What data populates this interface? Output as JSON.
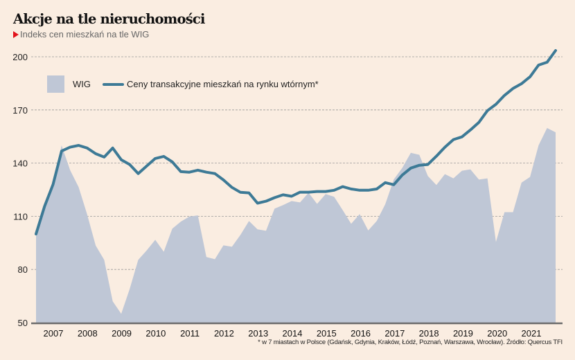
{
  "header": {
    "title": "Akcje na tle nieruchomości",
    "subtitle": "Indeks cen mieszkań na tle WIG"
  },
  "footnote": "* w 7 miastach w Polsce (Gdańsk, Gdynia, Kraków, Łódź, Poznań, Warszawa, Wrocław). Źródło: Quercus TFI",
  "colors": {
    "background": "#faede1",
    "wig_fill": "#bfc7d6",
    "price_line": "#3d7a96",
    "grid": "#9a9a9a",
    "axis": "#6b6b6b",
    "marker": "#e2121b"
  },
  "chart_data": {
    "type": "area+line",
    "title": "Akcje na tle nieruchomości",
    "subtitle": "Indeks cen mieszkań na tle WIG",
    "xlabel": "",
    "ylabel": "",
    "ylim": [
      50,
      205
    ],
    "yticks": [
      50,
      80,
      110,
      140,
      170,
      200
    ],
    "xticks": [
      "2007",
      "2008",
      "2009",
      "2010",
      "2011",
      "2012",
      "2013",
      "2014",
      "2015",
      "2016",
      "2017",
      "2018",
      "2019",
      "2020",
      "2021"
    ],
    "grid": true,
    "legend_position": "top-left",
    "x_start": "2006Q3",
    "x_step": "quarter",
    "series": [
      {
        "name": "WIG",
        "type": "area",
        "values": [
          100,
          115.6,
          128,
          150,
          136,
          126.5,
          111,
          93.5,
          85.4,
          62,
          55,
          69,
          85.4,
          90.8,
          96.7,
          90,
          103,
          107,
          109.8,
          110.5,
          87,
          85.8,
          93.6,
          92.8,
          99.5,
          107.3,
          102.6,
          101.8,
          114.3,
          116.3,
          118.6,
          117.8,
          123.3,
          117,
          122.5,
          121,
          113.5,
          105.8,
          111.2,
          102,
          107.3,
          116.8,
          130.8,
          137.3,
          145.8,
          144.7,
          132.7,
          127.6,
          133.8,
          131.4,
          135.7,
          136.5,
          130.7,
          131.4,
          95.5,
          112.3,
          112.3,
          129,
          132.2,
          150,
          159.8,
          157.4
        ]
      },
      {
        "name": "Ceny transakcyjne mieszkań na rynku wtórnym*",
        "type": "line",
        "values": [
          100,
          115.6,
          128,
          146.8,
          149,
          150,
          148.5,
          145.3,
          143.4,
          148.5,
          141.9,
          139.2,
          134.1,
          138.4,
          142.6,
          143.8,
          140.7,
          135.2,
          134.9,
          136,
          134.9,
          134.1,
          130.5,
          126.3,
          123.5,
          123.2,
          117.4,
          118.5,
          120.5,
          122.1,
          121.3,
          123.6,
          123.6,
          124,
          124,
          124.7,
          126.7,
          125.4,
          124.7,
          124.7,
          125.4,
          129,
          127.8,
          133.3,
          137.2,
          138.8,
          139.2,
          143.9,
          149,
          153.3,
          154.8,
          158.7,
          163,
          169.6,
          173.2,
          178.2,
          182.1,
          184.8,
          188.7,
          195.3,
          196.9,
          203.5
        ]
      }
    ]
  }
}
